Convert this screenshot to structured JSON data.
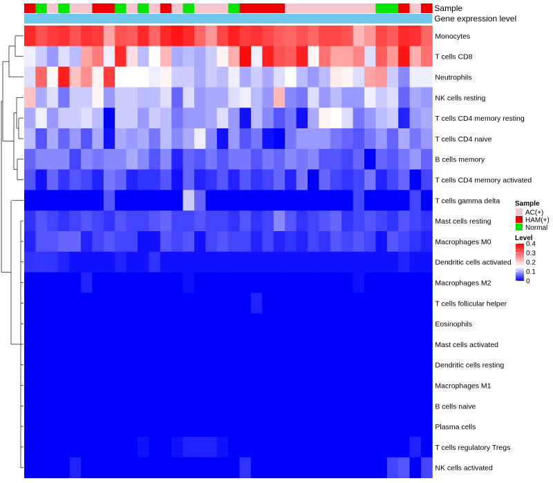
{
  "chart_data": {
    "type": "heatmap",
    "title": "",
    "annotation_labels": {
      "sample": "Sample",
      "gene": "Gene expression level"
    },
    "rows": [
      "Monocytes",
      "T cells CD8",
      "Neutrophils",
      "NK cells resting",
      "T cells CD4 memory resting",
      "T cells CD4 naive",
      "B cells memory",
      "T cells CD4 memory activated",
      "T cells gamma delta",
      "Mast cells resting",
      "Macrophages M0",
      "Dendritic cells activated",
      "Macrophages M2",
      "T cells follicular helper",
      "Eosinophils",
      "Mast cells activated",
      "Dendritic cells resting",
      "Macrophages M1",
      "B cells naive",
      "Plasma cells",
      "T cells regulatory  Tregs",
      "NK cells activated"
    ],
    "sample_groups": [
      "HAM",
      "Normal",
      "AC",
      "Normal",
      "AC",
      "AC",
      "HAM",
      "HAM",
      "Normal",
      "AC",
      "Normal",
      "AC",
      "HAM",
      "AC",
      "Normal",
      "AC",
      "AC",
      "AC",
      "Normal",
      "HAM",
      "HAM",
      "HAM",
      "HAM",
      "AC",
      "AC",
      "AC",
      "AC",
      "AC",
      "AC",
      "AC",
      "AC",
      "Normal",
      "Normal",
      "HAM",
      "AC",
      "HAM"
    ],
    "values": [
      [
        0.36,
        0.32,
        0.34,
        0.35,
        0.32,
        0.35,
        0.34,
        0.24,
        0.32,
        0.31,
        0.36,
        0.3,
        0.36,
        0.38,
        0.36,
        0.3,
        0.25,
        0.33,
        0.37,
        0.34,
        0.35,
        0.33,
        0.31,
        0.3,
        0.32,
        0.3,
        0.33,
        0.33,
        0.32,
        0.22,
        0.25,
        0.33,
        0.31,
        0.36,
        0.35,
        0.3
      ],
      [
        0.14,
        0.12,
        0.09,
        0.13,
        0.11,
        0.24,
        0.28,
        0.14,
        0.36,
        0.18,
        0.11,
        0.15,
        0.22,
        0.1,
        0.11,
        0.1,
        0.12,
        0.16,
        0.23,
        0.39,
        0.14,
        0.37,
        0.32,
        0.31,
        0.37,
        0.16,
        0.29,
        0.24,
        0.24,
        0.27,
        0.13,
        0.31,
        0.25,
        0.38,
        0.23,
        0.29
      ],
      [
        0.13,
        0.3,
        0.16,
        0.37,
        0.21,
        0.26,
        0.16,
        0.34,
        0.15,
        0.15,
        0.15,
        0.14,
        0.16,
        0.12,
        0.12,
        0.1,
        0.12,
        0.11,
        0.14,
        0.1,
        0.12,
        0.1,
        0.13,
        0.15,
        0.11,
        0.09,
        0.11,
        0.17,
        0.16,
        0.13,
        0.24,
        0.25,
        0.12,
        0.08,
        0.14,
        0.14
      ],
      [
        0.21,
        0.1,
        0.13,
        0.07,
        0.12,
        0.12,
        0.16,
        0.09,
        0.12,
        0.12,
        0.11,
        0.11,
        0.13,
        0.06,
        0.13,
        0.09,
        0.1,
        0.1,
        0.13,
        0.14,
        0.11,
        0.09,
        0.22,
        0.08,
        0.07,
        0.13,
        0.09,
        0.11,
        0.09,
        0.09,
        0.14,
        0.12,
        0.13,
        0.06,
        0.1,
        0.09
      ],
      [
        0.1,
        0.14,
        0.09,
        0.12,
        0.12,
        0.13,
        0.11,
        0.0,
        0.12,
        0.12,
        0.09,
        0.12,
        0.11,
        0.07,
        0.09,
        0.09,
        0.1,
        0.13,
        0.09,
        0.01,
        0.11,
        0.08,
        0.05,
        0.07,
        0.01,
        0.1,
        0.16,
        0.15,
        0.13,
        0.07,
        0.09,
        0.11,
        0.12,
        0.02,
        0.09,
        0.1
      ],
      [
        0.11,
        0.05,
        0.1,
        0.06,
        0.09,
        0.05,
        0.1,
        0.01,
        0.1,
        0.09,
        0.1,
        0.07,
        0.11,
        0.08,
        0.1,
        0.14,
        0.08,
        0.01,
        0.09,
        0.05,
        0.07,
        0.01,
        0.0,
        0.07,
        0.09,
        0.09,
        0.09,
        0.07,
        0.06,
        0.05,
        0.07,
        0.09,
        0.06,
        0.1,
        0.07,
        0.09
      ],
      [
        0.06,
        0.08,
        0.08,
        0.08,
        0.04,
        0.08,
        0.07,
        0.08,
        0.08,
        0.1,
        0.08,
        0.05,
        0.08,
        0.02,
        0.06,
        0.05,
        0.07,
        0.05,
        0.07,
        0.07,
        0.05,
        0.07,
        0.06,
        0.08,
        0.07,
        0.08,
        0.05,
        0.05,
        0.04,
        0.06,
        0.0,
        0.06,
        0.05,
        0.07,
        0.09,
        0.06
      ],
      [
        0.05,
        0.01,
        0.06,
        0.03,
        0.05,
        0.04,
        0.02,
        0.07,
        0.06,
        0.02,
        0.03,
        0.03,
        0.05,
        0.01,
        0.06,
        0.02,
        0.03,
        0.05,
        0.02,
        0.05,
        0.03,
        0.04,
        0.06,
        0.02,
        0.07,
        0.0,
        0.06,
        0.04,
        0.03,
        0.04,
        0.07,
        0.02,
        0.04,
        0.06,
        0.0,
        0.04
      ],
      [
        0.0,
        0.0,
        0.0,
        0.0,
        0.0,
        0.0,
        0.0,
        0.05,
        0.0,
        0.0,
        0.0,
        0.0,
        0.0,
        0.0,
        0.12,
        0.06,
        0.0,
        0.0,
        0.0,
        0.0,
        0.0,
        0.0,
        0.0,
        0.0,
        0.0,
        0.0,
        0.0,
        0.0,
        0.0,
        0.04,
        0.0,
        0.0,
        0.0,
        0.0,
        0.04,
        0.0
      ],
      [
        0.03,
        0.05,
        0.04,
        0.03,
        0.04,
        0.05,
        0.04,
        0.03,
        0.05,
        0.04,
        0.04,
        0.05,
        0.06,
        0.04,
        0.04,
        0.05,
        0.04,
        0.04,
        0.03,
        0.05,
        0.03,
        0.04,
        0.08,
        0.05,
        0.03,
        0.04,
        0.05,
        0.06,
        0.03,
        0.04,
        0.05,
        0.04,
        0.03,
        0.05,
        0.04,
        0.03
      ],
      [
        0.02,
        0.05,
        0.05,
        0.06,
        0.06,
        0.02,
        0.04,
        0.05,
        0.04,
        0.04,
        0.01,
        0.01,
        0.05,
        0.04,
        0.05,
        0.01,
        0.04,
        0.05,
        0.04,
        0.04,
        0.02,
        0.04,
        0.02,
        0.03,
        0.02,
        0.04,
        0.03,
        0.05,
        0.04,
        0.05,
        0.04,
        0.01,
        0.05,
        0.04,
        0.03,
        0.02
      ],
      [
        0.03,
        0.03,
        0.03,
        0.02,
        0.01,
        0.01,
        0.01,
        0.01,
        0.02,
        0.01,
        0.01,
        0.03,
        0.01,
        0.01,
        0.01,
        0.01,
        0.01,
        0.01,
        0.01,
        0.01,
        0.01,
        0.01,
        0.01,
        0.01,
        0.01,
        0.01,
        0.01,
        0.01,
        0.01,
        0.01,
        0.01,
        0.01,
        0.01,
        0.02,
        0.01,
        0.01
      ],
      [
        0.0,
        0.0,
        0.0,
        0.0,
        0.0,
        0.02,
        0.0,
        0.0,
        0.0,
        0.0,
        0.0,
        0.0,
        0.0,
        0.0,
        0.01,
        0.0,
        0.0,
        0.0,
        0.0,
        0.0,
        0.0,
        0.0,
        0.0,
        0.0,
        0.0,
        0.0,
        0.0,
        0.0,
        0.0,
        0.01,
        0.0,
        0.0,
        0.0,
        0.0,
        0.0,
        0.0
      ],
      [
        0.0,
        0.0,
        0.0,
        0.0,
        0.0,
        0.0,
        0.0,
        0.0,
        0.0,
        0.0,
        0.0,
        0.0,
        0.0,
        0.0,
        0.0,
        0.0,
        0.0,
        0.0,
        0.0,
        0.0,
        0.02,
        0.0,
        0.0,
        0.0,
        0.0,
        0.0,
        0.0,
        0.0,
        0.0,
        0.0,
        0.0,
        0.0,
        0.0,
        0.0,
        0.0,
        0.0
      ],
      [
        0.0,
        0.0,
        0.0,
        0.0,
        0.0,
        0.0,
        0.0,
        0.0,
        0.0,
        0.0,
        0.0,
        0.0,
        0.0,
        0.0,
        0.0,
        0.0,
        0.0,
        0.0,
        0.0,
        0.0,
        0.0,
        0.0,
        0.0,
        0.0,
        0.0,
        0.0,
        0.0,
        0.0,
        0.0,
        0.0,
        0.0,
        0.0,
        0.0,
        0.0,
        0.0,
        0.0
      ],
      [
        0.0,
        0.0,
        0.0,
        0.0,
        0.0,
        0.0,
        0.0,
        0.0,
        0.0,
        0.0,
        0.0,
        0.0,
        0.0,
        0.0,
        0.0,
        0.0,
        0.0,
        0.0,
        0.0,
        0.0,
        0.0,
        0.0,
        0.0,
        0.0,
        0.0,
        0.0,
        0.0,
        0.0,
        0.0,
        0.0,
        0.0,
        0.0,
        0.0,
        0.0,
        0.0,
        0.0
      ],
      [
        0.0,
        0.0,
        0.0,
        0.0,
        0.0,
        0.0,
        0.0,
        0.0,
        0.0,
        0.0,
        0.0,
        0.0,
        0.0,
        0.0,
        0.0,
        0.0,
        0.0,
        0.0,
        0.0,
        0.0,
        0.0,
        0.0,
        0.0,
        0.0,
        0.0,
        0.0,
        0.0,
        0.0,
        0.0,
        0.0,
        0.0,
        0.0,
        0.0,
        0.0,
        0.0,
        0.0
      ],
      [
        0.0,
        0.0,
        0.0,
        0.0,
        0.0,
        0.0,
        0.0,
        0.0,
        0.0,
        0.0,
        0.0,
        0.0,
        0.0,
        0.0,
        0.0,
        0.0,
        0.0,
        0.0,
        0.0,
        0.0,
        0.0,
        0.0,
        0.0,
        0.0,
        0.0,
        0.0,
        0.0,
        0.0,
        0.0,
        0.0,
        0.0,
        0.0,
        0.0,
        0.0,
        0.0,
        0.0
      ],
      [
        0.0,
        0.0,
        0.0,
        0.0,
        0.0,
        0.0,
        0.0,
        0.0,
        0.0,
        0.0,
        0.0,
        0.0,
        0.0,
        0.0,
        0.0,
        0.0,
        0.0,
        0.0,
        0.0,
        0.0,
        0.0,
        0.0,
        0.0,
        0.0,
        0.0,
        0.0,
        0.0,
        0.0,
        0.0,
        0.0,
        0.0,
        0.0,
        0.0,
        0.0,
        0.0,
        0.0
      ],
      [
        0.0,
        0.0,
        0.0,
        0.0,
        0.0,
        0.0,
        0.0,
        0.0,
        0.0,
        0.0,
        0.0,
        0.0,
        0.0,
        0.0,
        0.0,
        0.0,
        0.0,
        0.0,
        0.0,
        0.0,
        0.0,
        0.0,
        0.0,
        0.0,
        0.0,
        0.0,
        0.0,
        0.0,
        0.0,
        0.0,
        0.0,
        0.0,
        0.0,
        0.0,
        0.0,
        0.0
      ],
      [
        0.0,
        0.0,
        0.0,
        0.0,
        0.0,
        0.0,
        0.0,
        0.0,
        0.0,
        0.0,
        0.01,
        0.0,
        0.0,
        0.01,
        0.02,
        0.02,
        0.02,
        0.01,
        0.0,
        0.0,
        0.0,
        0.0,
        0.0,
        0.0,
        0.0,
        0.0,
        0.0,
        0.0,
        0.0,
        0.0,
        0.0,
        0.0,
        0.0,
        0.0,
        0.02,
        0.0
      ],
      [
        0.0,
        0.0,
        0.0,
        0.0,
        0.02,
        0.0,
        0.0,
        0.0,
        0.0,
        0.0,
        0.0,
        0.0,
        0.0,
        0.0,
        0.0,
        0.0,
        0.0,
        0.0,
        0.0,
        0.03,
        0.0,
        0.0,
        0.0,
        0.0,
        0.0,
        0.0,
        0.0,
        0.0,
        0.0,
        0.0,
        0.0,
        0.0,
        0.04,
        0.05,
        0.0,
        0.04
      ]
    ],
    "legend_sample": {
      "title": "Sample",
      "items": [
        {
          "key": "AC",
          "label": "AC(+)",
          "color": "#f5c6cf"
        },
        {
          "key": "HAM",
          "label": "HAM(+)",
          "color": "#ee0000"
        },
        {
          "key": "Normal",
          "label": "Normal",
          "color": "#00e600"
        }
      ]
    },
    "legend_level": {
      "title": "Level",
      "ticks": [
        "0.4",
        "0.3",
        "0.2",
        "0.1",
        "0"
      ],
      "tick_values": [
        0.4,
        0.3,
        0.2,
        0.1,
        0.0
      ],
      "range": [
        0,
        0.4
      ]
    },
    "gene_color": "#72c7ec",
    "color_scale": {
      "low": "#0000ff",
      "mid": "#ffffff",
      "high": "#ff0000",
      "mid_value": 0.15
    }
  }
}
